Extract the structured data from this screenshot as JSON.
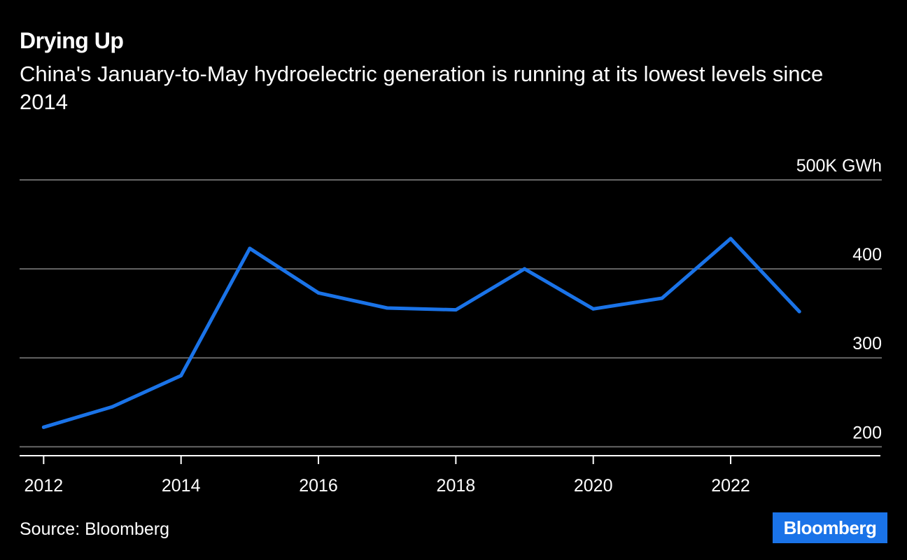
{
  "header": {
    "title": "Drying Up",
    "subtitle": "China's January-to-May hydroelectric generation is running at its lowest levels since 2014"
  },
  "footer": {
    "source": "Source: Bloomberg",
    "brand": "Bloomberg"
  },
  "colors": {
    "background": "#000000",
    "line": "#1a73e8",
    "grid": "#666666",
    "text": "#ffffff",
    "brand_bg": "#1a73e8"
  },
  "chart_data": {
    "type": "line",
    "title": "Drying Up",
    "subtitle": "China's January-to-May hydroelectric generation is running at its lowest levels since 2014",
    "unit_label": "500K GWh",
    "ylim": [
      190,
      500
    ],
    "y_ticks": [
      {
        "value": 200,
        "label": "200"
      },
      {
        "value": 300,
        "label": "300"
      },
      {
        "value": 400,
        "label": "400"
      },
      {
        "value": 500,
        "label": "500K GWh"
      }
    ],
    "x_ticks": [
      2012,
      2014,
      2016,
      2018,
      2020,
      2022
    ],
    "xlim": [
      2011.65,
      2024.2
    ],
    "grid": true,
    "y_axis_position": "right",
    "series": [
      {
        "x": [
          2012,
          2013,
          2014,
          2015,
          2016,
          2017,
          2018,
          2019,
          2020,
          2021,
          2022,
          2023
        ],
        "values": [
          222,
          245,
          280,
          423,
          373,
          356,
          354,
          400,
          355,
          367,
          434,
          352
        ]
      }
    ]
  }
}
